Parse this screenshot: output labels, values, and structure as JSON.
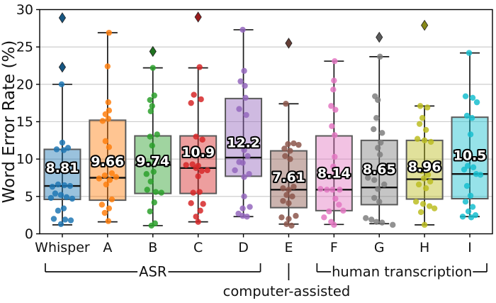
{
  "chart_data": {
    "type": "box",
    "title": "",
    "ylabel": "Word Error Rate (%)",
    "ylim": [
      0,
      30
    ],
    "yticks": [
      0,
      5,
      10,
      15,
      20,
      25,
      30
    ],
    "grid": "horizontal",
    "grid_color": "#c9c9c9",
    "categories": [
      "Whisper",
      "A",
      "B",
      "C",
      "D",
      "E",
      "F",
      "G",
      "H",
      "I"
    ],
    "groups": [
      {
        "label": "Whisper",
        "color": "#1f77b4",
        "mean": 8.81,
        "mean_label": "8.81",
        "q1": 4.6,
        "median": 6.4,
        "q3": 11.3,
        "whisker_low": 1.2,
        "whisker_high": 20.0,
        "outliers": [
          28.9,
          22.3
        ],
        "points": [
          [
            20.0,
            -1
          ],
          [
            12.2,
            0
          ],
          [
            11.5,
            8
          ],
          [
            11.3,
            -8
          ],
          [
            11.2,
            2
          ],
          [
            6.6,
            -6
          ],
          [
            6.5,
            3
          ],
          [
            6.4,
            11
          ],
          [
            6.3,
            -14
          ],
          [
            5.4,
            -10
          ],
          [
            5.2,
            -2
          ],
          [
            4.9,
            6
          ],
          [
            4.8,
            -16
          ],
          [
            4.7,
            14
          ],
          [
            3.4,
            2
          ],
          [
            3.1,
            -6
          ],
          [
            2.0,
            -12
          ],
          [
            1.9,
            4
          ],
          [
            1.8,
            12
          ],
          [
            1.3,
            -2
          ]
        ]
      },
      {
        "label": "A",
        "color": "#ff7f0e",
        "mean": 9.66,
        "mean_label": "9.66",
        "q1": 4.5,
        "median": 7.5,
        "q3": 15.2,
        "whisker_low": 1.6,
        "whisker_high": 26.9,
        "outliers": [],
        "points": [
          [
            26.9,
            2
          ],
          [
            22.4,
            0
          ],
          [
            17.6,
            1
          ],
          [
            16.5,
            2
          ],
          [
            16.0,
            -3
          ],
          [
            15.4,
            1
          ],
          [
            15.1,
            -7
          ],
          [
            12.4,
            -3
          ],
          [
            11.6,
            2
          ],
          [
            8.1,
            6
          ],
          [
            7.8,
            -4
          ],
          [
            7.6,
            12
          ],
          [
            7.4,
            -12
          ],
          [
            7.2,
            3
          ],
          [
            6.6,
            -2
          ],
          [
            4.6,
            6
          ],
          [
            3.9,
            -8
          ],
          [
            3.4,
            2
          ],
          [
            2.8,
            -4
          ],
          [
            1.7,
            1
          ]
        ]
      },
      {
        "label": "B",
        "color": "#2ca02c",
        "mean": 9.74,
        "mean_label": "9.74",
        "q1": 5.4,
        "median": 9.2,
        "q3": 13.1,
        "whisker_low": 1.1,
        "whisker_high": 22.2,
        "outliers": [
          24.4
        ],
        "points": [
          [
            22.2,
            0
          ],
          [
            18.5,
            2
          ],
          [
            17.9,
            -4
          ],
          [
            17.1,
            -1
          ],
          [
            16.4,
            -3
          ],
          [
            13.3,
            6
          ],
          [
            13.0,
            -4
          ],
          [
            11.8,
            -1
          ],
          [
            9.7,
            4
          ],
          [
            9.4,
            -6
          ],
          [
            8.3,
            1
          ],
          [
            8.0,
            -9
          ],
          [
            7.0,
            -3
          ],
          [
            5.9,
            -8
          ],
          [
            5.6,
            4
          ],
          [
            5.5,
            12
          ],
          [
            4.2,
            2
          ],
          [
            3.0,
            -4
          ],
          [
            1.4,
            3
          ],
          [
            1.1,
            -2
          ]
        ]
      },
      {
        "label": "C",
        "color": "#d62728",
        "mean": 10.9,
        "mean_label": "10.9",
        "q1": 5.4,
        "median": 8.8,
        "q3": 13.1,
        "whisker_low": 1.6,
        "whisker_high": 22.2,
        "outliers": [
          29.0
        ],
        "points": [
          [
            22.3,
            2
          ],
          [
            18.6,
            -6
          ],
          [
            18.0,
            4
          ],
          [
            17.5,
            -10
          ],
          [
            13.0,
            -3
          ],
          [
            12.6,
            6
          ],
          [
            9.3,
            -8
          ],
          [
            9.2,
            -17
          ],
          [
            9.1,
            0
          ],
          [
            8.8,
            -3
          ],
          [
            8.5,
            13
          ],
          [
            8.4,
            5
          ],
          [
            7.7,
            0
          ],
          [
            5.6,
            2
          ],
          [
            5.5,
            -7
          ],
          [
            4.1,
            -10
          ],
          [
            4.0,
            7
          ],
          [
            3.1,
            3
          ],
          [
            2.3,
            -3
          ],
          [
            1.6,
            0
          ]
        ]
      },
      {
        "label": "D",
        "color": "#9467bd",
        "mean": 12.2,
        "mean_label": "12.2",
        "q1": 7.7,
        "median": 10.2,
        "q3": 18.1,
        "whisker_low": 2.3,
        "whisker_high": 27.3,
        "outliers": [],
        "points": [
          [
            27.3,
            -1
          ],
          [
            21.8,
            1
          ],
          [
            20.4,
            -4
          ],
          [
            19.8,
            2
          ],
          [
            18.2,
            3
          ],
          [
            16.7,
            -6
          ],
          [
            15.9,
            4
          ],
          [
            11.2,
            1
          ],
          [
            10.4,
            6
          ],
          [
            9.6,
            -6
          ],
          [
            9.5,
            -1
          ],
          [
            8.5,
            -12
          ],
          [
            8.0,
            8
          ],
          [
            7.6,
            1
          ],
          [
            5.0,
            1
          ],
          [
            3.6,
            9
          ],
          [
            3.4,
            -1
          ],
          [
            2.7,
            -7
          ],
          [
            2.4,
            -1
          ],
          [
            2.3,
            5
          ]
        ]
      },
      {
        "label": "E",
        "color": "#8c564b",
        "mean": 7.61,
        "mean_label": "7.61",
        "q1": 3.5,
        "median": 5.9,
        "q3": 11.1,
        "whisker_low": 1.3,
        "whisker_high": 17.4,
        "outliers": [
          25.5
        ],
        "points": [
          [
            17.4,
            -4
          ],
          [
            12.1,
            7
          ],
          [
            12.0,
            -1
          ],
          [
            11.9,
            14
          ],
          [
            11.4,
            -6
          ],
          [
            11.1,
            2
          ],
          [
            10.4,
            -5
          ],
          [
            10.0,
            2
          ],
          [
            6.3,
            7
          ],
          [
            6.1,
            -8
          ],
          [
            5.9,
            0
          ],
          [
            5.2,
            -3
          ],
          [
            5.0,
            5
          ],
          [
            4.4,
            -8
          ],
          [
            4.1,
            0
          ],
          [
            2.4,
            10
          ],
          [
            2.2,
            -10
          ],
          [
            2.0,
            0
          ],
          [
            1.3,
            -3
          ],
          [
            1.1,
            4
          ]
        ]
      },
      {
        "label": "F",
        "color": "#e377c2",
        "mean": 8.14,
        "mean_label": "8.14",
        "q1": 3.1,
        "median": 5.9,
        "q3": 13.1,
        "whisker_low": 1.25,
        "whisker_high": 23.1,
        "outliers": [],
        "points": [
          [
            23.1,
            1
          ],
          [
            20.5,
            0
          ],
          [
            19.3,
            -1
          ],
          [
            17.1,
            -4
          ],
          [
            16.6,
            2
          ],
          [
            14.4,
            -3
          ],
          [
            13.2,
            1
          ],
          [
            10.3,
            1
          ],
          [
            9.0,
            -1
          ],
          [
            6.0,
            -19
          ],
          [
            5.9,
            -10
          ],
          [
            5.9,
            -2
          ],
          [
            5.9,
            8
          ],
          [
            4.7,
            2
          ],
          [
            3.9,
            7
          ],
          [
            3.0,
            -7
          ],
          [
            3.1,
            13
          ],
          [
            2.2,
            -14
          ],
          [
            1.6,
            -4
          ],
          [
            1.2,
            0
          ]
        ]
      },
      {
        "label": "G",
        "color": "#7f7f7f",
        "mean": 8.65,
        "mean_label": "8.65",
        "q1": 3.9,
        "median": 6.2,
        "q3": 12.5,
        "whisker_low": 1.35,
        "whisker_high": 23.7,
        "outliers": [
          26.3
        ],
        "points": [
          [
            23.7,
            1
          ],
          [
            18.4,
            -6
          ],
          [
            17.9,
            -2
          ],
          [
            15.5,
            -4
          ],
          [
            14.0,
            -8
          ],
          [
            13.5,
            4
          ],
          [
            12.2,
            2
          ],
          [
            11.5,
            -2
          ],
          [
            10.6,
            1
          ],
          [
            7.5,
            -16
          ],
          [
            7.2,
            -7
          ],
          [
            6.6,
            7
          ],
          [
            6.0,
            -2
          ],
          [
            4.8,
            -7
          ],
          [
            4.3,
            0
          ],
          [
            2.1,
            -19
          ],
          [
            1.9,
            -11
          ],
          [
            1.6,
            -4
          ],
          [
            1.5,
            4
          ],
          [
            1.2,
            19
          ]
        ]
      },
      {
        "label": "H",
        "color": "#bcbd22",
        "mean": 8.96,
        "mean_label": "8.96",
        "q1": 4.65,
        "median": 7.3,
        "q3": 12.5,
        "whisker_low": 1.2,
        "whisker_high": 17.1,
        "outliers": [
          27.9
        ],
        "points": [
          [
            17.1,
            -6
          ],
          [
            16.9,
            4
          ],
          [
            15.5,
            -3
          ],
          [
            14.7,
            -7
          ],
          [
            13.9,
            2
          ],
          [
            12.7,
            -10
          ],
          [
            12.5,
            0
          ],
          [
            12.3,
            9
          ],
          [
            8.4,
            -4
          ],
          [
            7.9,
            5
          ],
          [
            7.4,
            -1
          ],
          [
            7.0,
            8
          ],
          [
            6.6,
            -8
          ],
          [
            6.1,
            2
          ],
          [
            4.3,
            -12
          ],
          [
            4.0,
            -2
          ],
          [
            3.7,
            7
          ],
          [
            3.4,
            14
          ],
          [
            2.9,
            -5
          ],
          [
            1.2,
            0
          ]
        ]
      },
      {
        "label": "I",
        "color": "#17becf",
        "mean": 10.5,
        "mean_label": "10.5",
        "q1": 4.7,
        "median": 8.0,
        "q3": 15.6,
        "whisker_low": 2.3,
        "whisker_high": 24.2,
        "outliers": [],
        "points": [
          [
            24.2,
            -1
          ],
          [
            18.4,
            -6
          ],
          [
            18.2,
            4
          ],
          [
            17.6,
            10
          ],
          [
            15.8,
            -4
          ],
          [
            15.5,
            3
          ],
          [
            13.3,
            1
          ],
          [
            9.1,
            -3
          ],
          [
            8.9,
            5
          ],
          [
            8.6,
            -8
          ],
          [
            8.0,
            9
          ],
          [
            7.9,
            15
          ],
          [
            6.4,
            -4
          ],
          [
            5.1,
            1
          ],
          [
            4.3,
            -6
          ],
          [
            3.6,
            4
          ],
          [
            3.0,
            -2
          ],
          [
            2.5,
            8
          ],
          [
            2.3,
            -10
          ],
          [
            2.2,
            2
          ]
        ]
      }
    ],
    "brackets": [
      {
        "label": "ASR",
        "from": 0,
        "to": 4,
        "style": "bracket"
      },
      {
        "label": "computer-assisted",
        "from": 5,
        "to": 5,
        "style": "tick-label-below"
      },
      {
        "label": "human transcription",
        "from": 6,
        "to": 9,
        "style": "bracket"
      }
    ]
  }
}
